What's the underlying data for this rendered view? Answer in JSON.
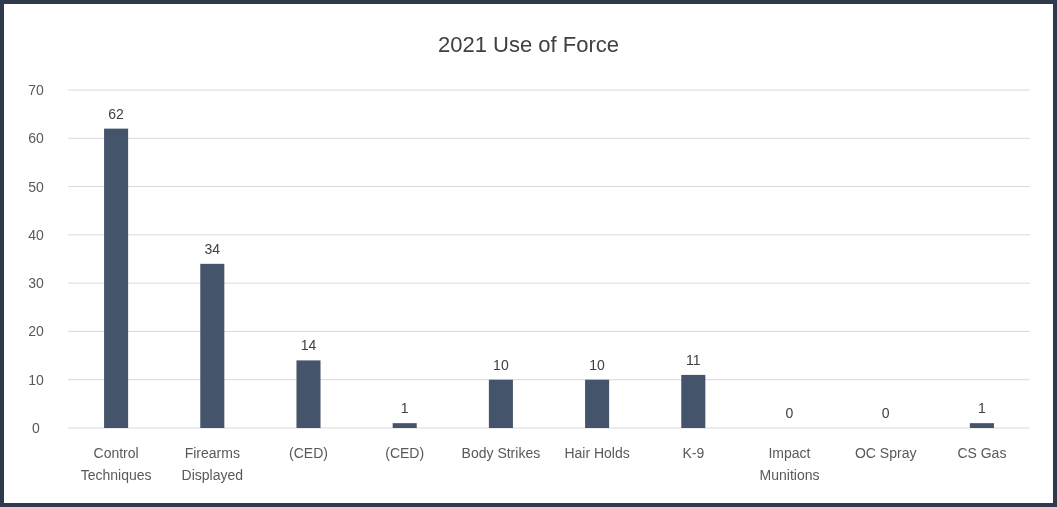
{
  "chart_data": {
    "type": "bar",
    "title": "2021 Use of Force",
    "categories": [
      "Control Techniques",
      "Firearms Displayed",
      "(CED)",
      "(CED)",
      "Body Strikes",
      "Hair Holds",
      "K-9",
      "Impact Munitions",
      "OC Spray",
      "CS Gas"
    ],
    "values": [
      62,
      34,
      14,
      1,
      10,
      10,
      11,
      0,
      0,
      1
    ],
    "color": "#44546a",
    "ylim": [
      0,
      70
    ],
    "yticks": [
      0,
      10,
      20,
      30,
      40,
      50,
      60,
      70
    ],
    "grid": "y",
    "data_labels": true
  }
}
